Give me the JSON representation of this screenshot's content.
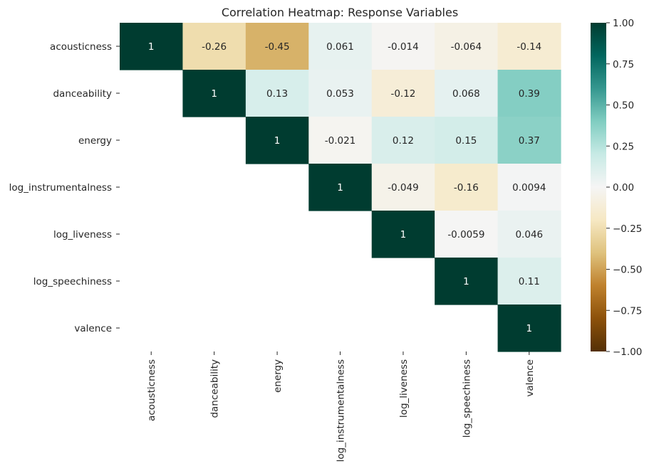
{
  "chart_data": {
    "type": "heatmap",
    "title": "Correlation Heatmap: Response Variables",
    "variables": [
      "acousticness",
      "danceability",
      "energy",
      "log_instrumentalness",
      "log_liveness",
      "log_speechiness",
      "valence"
    ],
    "cells": [
      {
        "row": 0,
        "col": 0,
        "value": 1,
        "label": "1"
      },
      {
        "row": 0,
        "col": 1,
        "value": -0.26,
        "label": "-0.26"
      },
      {
        "row": 0,
        "col": 2,
        "value": -0.45,
        "label": "-0.45"
      },
      {
        "row": 0,
        "col": 3,
        "value": 0.061,
        "label": "0.061"
      },
      {
        "row": 0,
        "col": 4,
        "value": -0.014,
        "label": "-0.014"
      },
      {
        "row": 0,
        "col": 5,
        "value": -0.064,
        "label": "-0.064"
      },
      {
        "row": 0,
        "col": 6,
        "value": -0.14,
        "label": "-0.14"
      },
      {
        "row": 1,
        "col": 1,
        "value": 1,
        "label": "1"
      },
      {
        "row": 1,
        "col": 2,
        "value": 0.13,
        "label": "0.13"
      },
      {
        "row": 1,
        "col": 3,
        "value": 0.053,
        "label": "0.053"
      },
      {
        "row": 1,
        "col": 4,
        "value": -0.12,
        "label": "-0.12"
      },
      {
        "row": 1,
        "col": 5,
        "value": 0.068,
        "label": "0.068"
      },
      {
        "row": 1,
        "col": 6,
        "value": 0.39,
        "label": "0.39"
      },
      {
        "row": 2,
        "col": 2,
        "value": 1,
        "label": "1"
      },
      {
        "row": 2,
        "col": 3,
        "value": -0.021,
        "label": "-0.021"
      },
      {
        "row": 2,
        "col": 4,
        "value": 0.12,
        "label": "0.12"
      },
      {
        "row": 2,
        "col": 5,
        "value": 0.15,
        "label": "0.15"
      },
      {
        "row": 2,
        "col": 6,
        "value": 0.37,
        "label": "0.37"
      },
      {
        "row": 3,
        "col": 3,
        "value": 1,
        "label": "1"
      },
      {
        "row": 3,
        "col": 4,
        "value": -0.049,
        "label": "-0.049"
      },
      {
        "row": 3,
        "col": 5,
        "value": -0.16,
        "label": "-0.16"
      },
      {
        "row": 3,
        "col": 6,
        "value": 0.0094,
        "label": "0.0094"
      },
      {
        "row": 4,
        "col": 4,
        "value": 1,
        "label": "1"
      },
      {
        "row": 4,
        "col": 5,
        "value": -0.0059,
        "label": "-0.0059"
      },
      {
        "row": 4,
        "col": 6,
        "value": 0.046,
        "label": "0.046"
      },
      {
        "row": 5,
        "col": 5,
        "value": 1,
        "label": "1"
      },
      {
        "row": 5,
        "col": 6,
        "value": 0.11,
        "label": "0.11"
      },
      {
        "row": 6,
        "col": 6,
        "value": 1,
        "label": "1"
      }
    ],
    "colormap": "BrBG",
    "colormap_stops": [
      "#543005",
      "#8c510a",
      "#bf812d",
      "#dfc27d",
      "#f6e8c3",
      "#f5f5f5",
      "#c7eae5",
      "#80cdc1",
      "#35978f",
      "#01665e",
      "#003c30"
    ],
    "vmin": -1.0,
    "vmax": 1.0,
    "colorbar_ticks": [
      {
        "value": 1.0,
        "label": "1.00"
      },
      {
        "value": 0.75,
        "label": "0.75"
      },
      {
        "value": 0.5,
        "label": "0.50"
      },
      {
        "value": 0.25,
        "label": "0.25"
      },
      {
        "value": 0.0,
        "label": "0.00"
      },
      {
        "value": -0.25,
        "label": "−0.25"
      },
      {
        "value": -0.5,
        "label": "−0.50"
      },
      {
        "value": -0.75,
        "label": "−0.75"
      },
      {
        "value": -1.0,
        "label": "−1.00"
      }
    ],
    "mask": "lower triangle hidden",
    "annotations_on": true,
    "grid": false
  }
}
